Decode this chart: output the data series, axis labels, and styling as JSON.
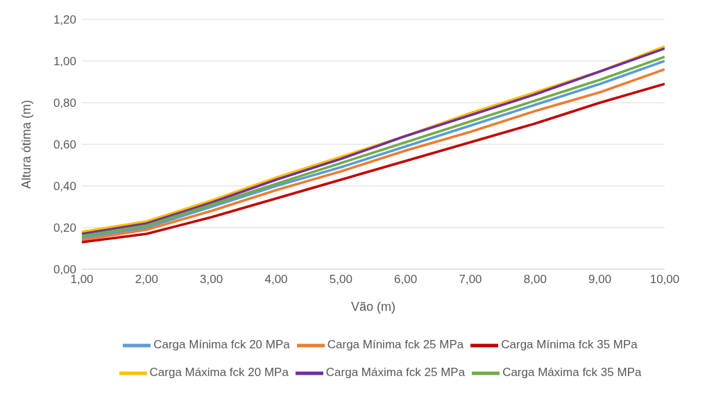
{
  "chart_data": {
    "type": "line",
    "xlabel": "Vão (m)",
    "ylabel": "Altura ótima (m)",
    "x": [
      1,
      2,
      3,
      4,
      5,
      6,
      7,
      8,
      9,
      10
    ],
    "xlim": [
      1,
      10
    ],
    "xticks": [
      {
        "value": 1,
        "label": "1,00"
      },
      {
        "value": 2,
        "label": "2,00"
      },
      {
        "value": 3,
        "label": "3,00"
      },
      {
        "value": 4,
        "label": "4,00"
      },
      {
        "value": 5,
        "label": "5,00"
      },
      {
        "value": 6,
        "label": "6,00"
      },
      {
        "value": 7,
        "label": "7,00"
      },
      {
        "value": 8,
        "label": "8,00"
      },
      {
        "value": 9,
        "label": "9,00"
      },
      {
        "value": 10,
        "label": "10,00"
      }
    ],
    "ylim": [
      0,
      1.2
    ],
    "yticks": [
      {
        "value": 0,
        "label": "0,00"
      },
      {
        "value": 0.2,
        "label": "0,20"
      },
      {
        "value": 0.4,
        "label": "0,40"
      },
      {
        "value": 0.6,
        "label": "0,60"
      },
      {
        "value": 0.8,
        "label": "0,80"
      },
      {
        "value": 1,
        "label": "1,00"
      },
      {
        "value": 1.2,
        "label": "1,20"
      }
    ],
    "grid": "y",
    "legend": "bottom",
    "marker": "none",
    "line_style": "solid",
    "series": [
      {
        "name": "Carga Mínima fck 20 MPa",
        "color": "#5b9bd5",
        "values": [
          0.15,
          0.2,
          0.3,
          0.4,
          0.49,
          0.59,
          0.69,
          0.79,
          0.89,
          1.0
        ]
      },
      {
        "name": "Carga Mínima fck 25 MPa",
        "color": "#ed7d31",
        "values": [
          0.14,
          0.19,
          0.28,
          0.38,
          0.47,
          0.57,
          0.66,
          0.76,
          0.85,
          0.96
        ]
      },
      {
        "name": "Carga Mínima fck 35 MPa",
        "color": "#c00000",
        "values": [
          0.13,
          0.17,
          0.25,
          0.34,
          0.43,
          0.52,
          0.61,
          0.7,
          0.8,
          0.89
        ]
      },
      {
        "name": "Carga Máxima fck 20 MPa",
        "color": "#ffc000",
        "values": [
          0.18,
          0.23,
          0.33,
          0.44,
          0.54,
          0.64,
          0.75,
          0.85,
          0.95,
          1.07
        ]
      },
      {
        "name": "Carga Máxima fck 25 MPa",
        "color": "#7030a0",
        "values": [
          0.17,
          0.22,
          0.32,
          0.43,
          0.53,
          0.64,
          0.74,
          0.84,
          0.95,
          1.06
        ]
      },
      {
        "name": "Carga Máxima fck 35 MPa",
        "color": "#70ad47",
        "values": [
          0.16,
          0.21,
          0.31,
          0.41,
          0.51,
          0.61,
          0.71,
          0.81,
          0.91,
          1.02
        ]
      }
    ]
  }
}
